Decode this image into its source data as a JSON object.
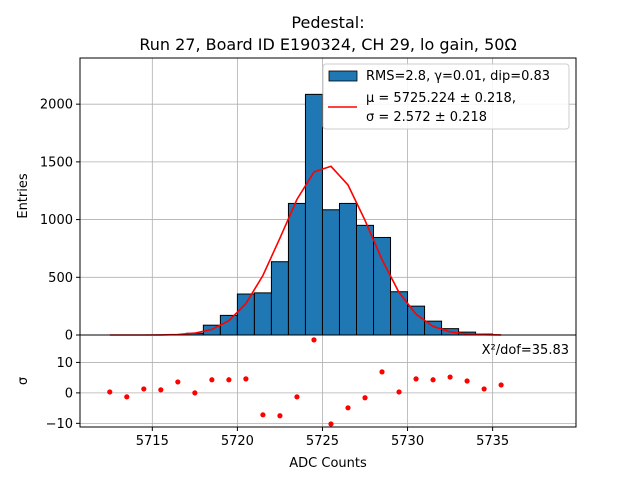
{
  "chart_data": [
    {
      "type": "bar",
      "panel": "histogram",
      "title_line1": "Pedestal:",
      "title_line2": "Run 27, Board ID E190324, CH 29, lo gain, 50Ω",
      "xlabel": "ADC Counts",
      "ylabel": "Entries",
      "xlim": [
        5710.75,
        5739.9
      ],
      "ylim": [
        0,
        2400
      ],
      "yticks": [
        0,
        500,
        1000,
        1500,
        2000
      ],
      "xticks": [
        5715,
        5720,
        5725,
        5730,
        5735
      ],
      "grid": true,
      "bar_color": "#1f77b4",
      "bins": {
        "left_edges": [
          5717,
          5718,
          5719,
          5720,
          5721,
          5722,
          5723,
          5724,
          5725,
          5726,
          5727,
          5728,
          5729,
          5730,
          5731,
          5732,
          5733,
          5734
        ],
        "width": 1,
        "counts": [
          15,
          85,
          170,
          355,
          365,
          635,
          1140,
          2085,
          1085,
          1140,
          950,
          845,
          375,
          250,
          120,
          55,
          25,
          8
        ]
      },
      "fit": {
        "type": "line",
        "color": "#ff0000",
        "mu": 5725.224,
        "sigma": 2.572,
        "amplitude": 1470,
        "x_range": [
          5712.5,
          5735.5
        ]
      },
      "legend": {
        "placement": "top-right",
        "entries": [
          {
            "label": "RMS=2.8, γ=0.01, dip=0.83",
            "kind": "patch"
          },
          {
            "label_line1": "μ = 5725.224 ± 0.218,",
            "label_line2": "σ = 2.572 ± 0.218",
            "kind": "line"
          }
        ]
      }
    },
    {
      "type": "scatter",
      "panel": "residuals",
      "xlabel": "ADC Counts",
      "ylabel": "σ",
      "ylim": [
        -11.2,
        19
      ],
      "yticks": [
        -10,
        0,
        10
      ],
      "xticks": [
        5715,
        5720,
        5725,
        5730,
        5735
      ],
      "grid": true,
      "point_color": "#ff0000",
      "annotation": "X²/dof=35.83",
      "x": [
        5712.5,
        5713.5,
        5714.5,
        5715.5,
        5716.5,
        5717.5,
        5718.5,
        5719.5,
        5720.5,
        5721.5,
        5722.5,
        5723.5,
        5724.5,
        5725.5,
        5726.5,
        5727.5,
        5728.5,
        5729.5,
        5730.5,
        5731.5,
        5732.5,
        5733.5,
        5734.5,
        5735.5
      ],
      "y": [
        0.3,
        -1.3,
        1.3,
        1.0,
        3.6,
        0.0,
        4.3,
        4.3,
        4.6,
        -7.2,
        -7.5,
        -1.3,
        17.4,
        -10.2,
        -4.9,
        -1.6,
        6.9,
        0.3,
        4.6,
        4.3,
        5.2,
        3.9,
        1.3,
        2.6
      ]
    }
  ]
}
